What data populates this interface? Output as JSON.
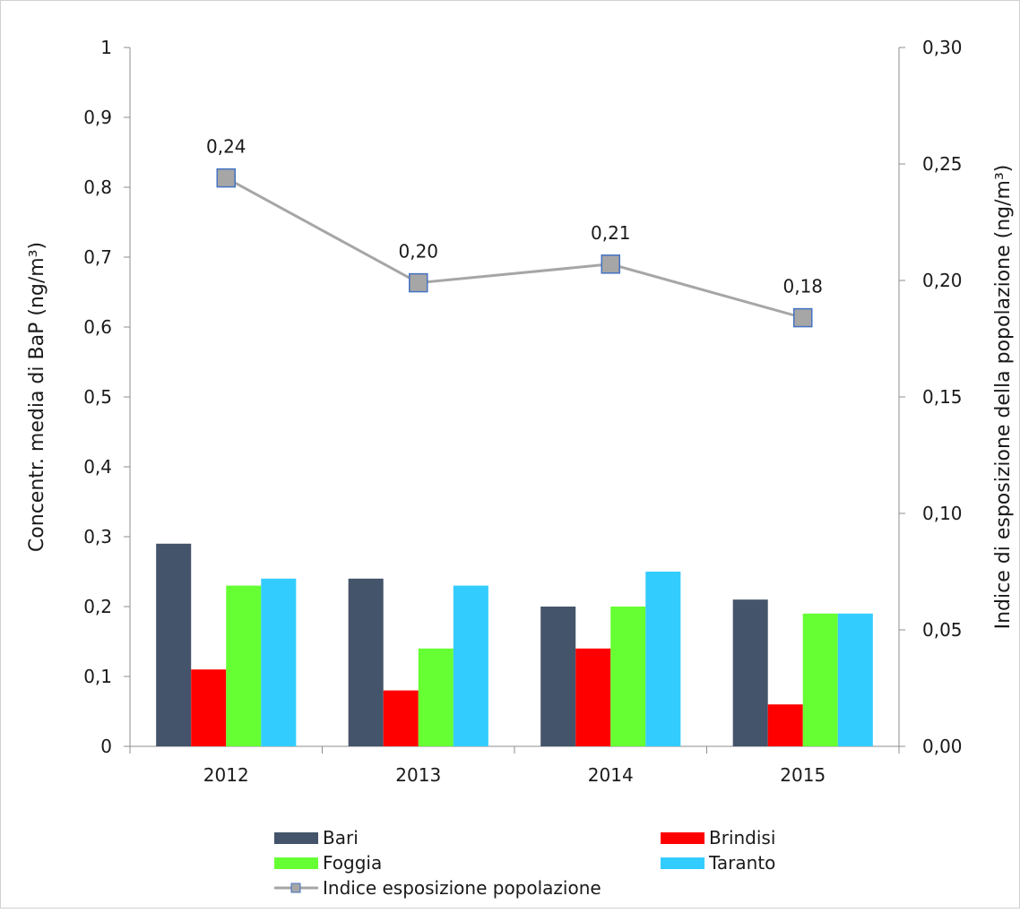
{
  "chart_data": {
    "type": "bar",
    "categories": [
      "2012",
      "2013",
      "2014",
      "2015"
    ],
    "series": [
      {
        "name": "Bari",
        "values": [
          0.29,
          0.24,
          0.2,
          0.21
        ],
        "color": "#44546A"
      },
      {
        "name": "Brindisi",
        "values": [
          0.11,
          0.08,
          0.14,
          0.06
        ],
        "color": "#FF0000"
      },
      {
        "name": "Foggia",
        "values": [
          0.23,
          0.14,
          0.2,
          0.19
        ],
        "color": "#66FF33"
      },
      {
        "name": "Taranto",
        "values": [
          0.24,
          0.23,
          0.25,
          0.19
        ],
        "color": "#33CCFF"
      }
    ],
    "line_series": {
      "name": "Indice esposizione popolazione",
      "values": [
        0.244,
        0.199,
        0.207,
        0.184
      ],
      "labels": [
        "0,24",
        "0,20",
        "0,21",
        "0,18"
      ],
      "line_color": "#A6A6A6",
      "marker_fill": "#A6A6A6",
      "marker_stroke": "#4472C4",
      "axis": "right"
    },
    "ylabel": "Concentr. media di BaP (ng/m³)",
    "y2label": "Indice di esposizione della popolazione (ng/m³)",
    "ylim": [
      0,
      1
    ],
    "y2lim": [
      0,
      0.3
    ],
    "y_ticks": [
      "0",
      "0,1",
      "0,2",
      "0,3",
      "0,4",
      "0,5",
      "0,6",
      "0,7",
      "0,8",
      "0,9",
      "1"
    ],
    "y2_ticks": [
      "0,00",
      "0,05",
      "0,10",
      "0,15",
      "0,20",
      "0,25",
      "0,30"
    ],
    "grid": false,
    "legend_position": "bottom"
  }
}
